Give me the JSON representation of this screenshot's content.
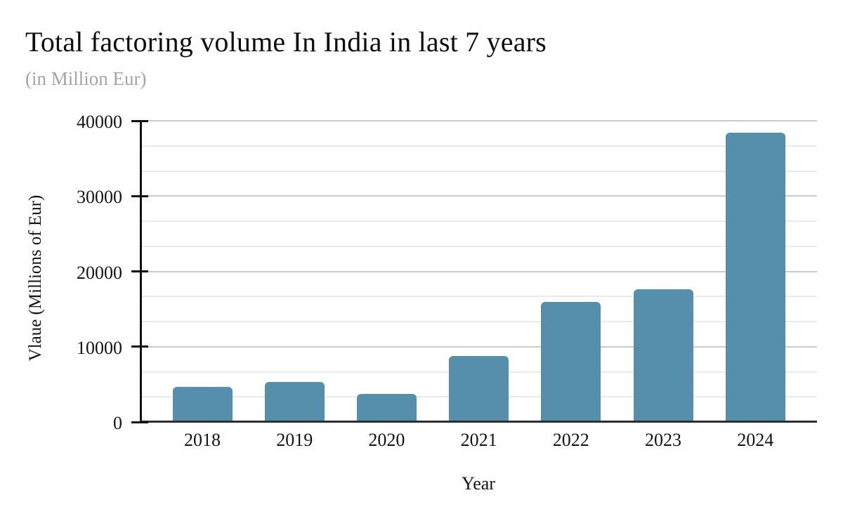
{
  "header": {
    "title": "Total factoring volume In India in last 7 years",
    "subtitle": "(in Million Eur)"
  },
  "chart_data": {
    "type": "bar",
    "title": "Total factoring volume In India in last 7 years",
    "subtitle": "(in Million Eur)",
    "categories": [
      "2018",
      "2019",
      "2020",
      "2021",
      "2022",
      "2023",
      "2024"
    ],
    "values": [
      4500,
      5100,
      3550,
      8600,
      15750,
      17450,
      38200
    ],
    "xlabel": "Year",
    "ylabel": "Vlaue (Millions of Eur)",
    "ylim": [
      0,
      40000
    ],
    "yticks": [
      0,
      10000,
      20000,
      30000,
      40000
    ],
    "ytick_labels": [
      "0",
      "10000",
      "20000",
      "30000",
      "40000"
    ],
    "minor_grid_divisions": 3,
    "grid": "horizontal",
    "legend": "none",
    "bar_color": "#568fab",
    "axis_color": "#111111",
    "major_grid_color": "#cbcbcb",
    "minor_grid_color": "#eaeaea"
  }
}
